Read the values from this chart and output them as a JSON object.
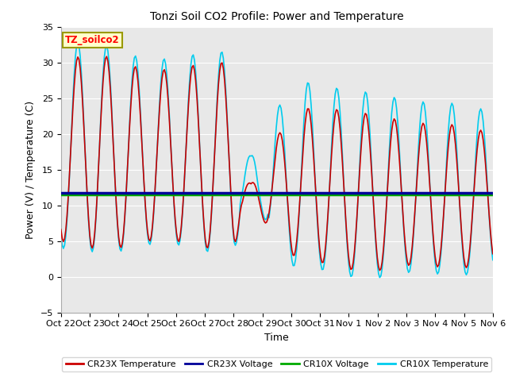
{
  "title": "Tonzi Soil CO2 Profile: Power and Temperature",
  "xlabel": "Time",
  "ylabel": "Power (V) / Temperature (C)",
  "ylim": [
    -5,
    35
  ],
  "yticks": [
    -5,
    0,
    5,
    10,
    15,
    20,
    25,
    30,
    35
  ],
  "xtick_labels": [
    "Oct 22",
    "Oct 23",
    "Oct 24",
    "Oct 25",
    "Oct 26",
    "Oct 27",
    "Oct 28",
    "Oct 29",
    "Oct 30",
    "Oct 31",
    "Nov 1",
    "Nov 2",
    "Nov 3",
    "Nov 4",
    "Nov 5",
    "Nov 6"
  ],
  "cr23x_temp_color": "#cc0000",
  "cr23x_volt_color": "#000099",
  "cr10x_volt_color": "#00aa00",
  "cr10x_temp_color": "#00ccee",
  "voltage_cr23x": 11.7,
  "voltage_cr10x": 11.55,
  "plot_bg_color": "#e8e8e8",
  "fig_bg_color": "#ffffff",
  "label_box_facecolor": "#ffffcc",
  "label_box_edgecolor": "#999900",
  "label_text": "TZ_soilco2",
  "legend_labels": [
    "CR23X Temperature",
    "CR23X Voltage",
    "CR10X Voltage",
    "CR10X Temperature"
  ],
  "figsize": [
    6.4,
    4.8
  ],
  "dpi": 100,
  "n_days": 15,
  "title_fontsize": 10,
  "axis_label_fontsize": 9,
  "tick_fontsize": 8
}
